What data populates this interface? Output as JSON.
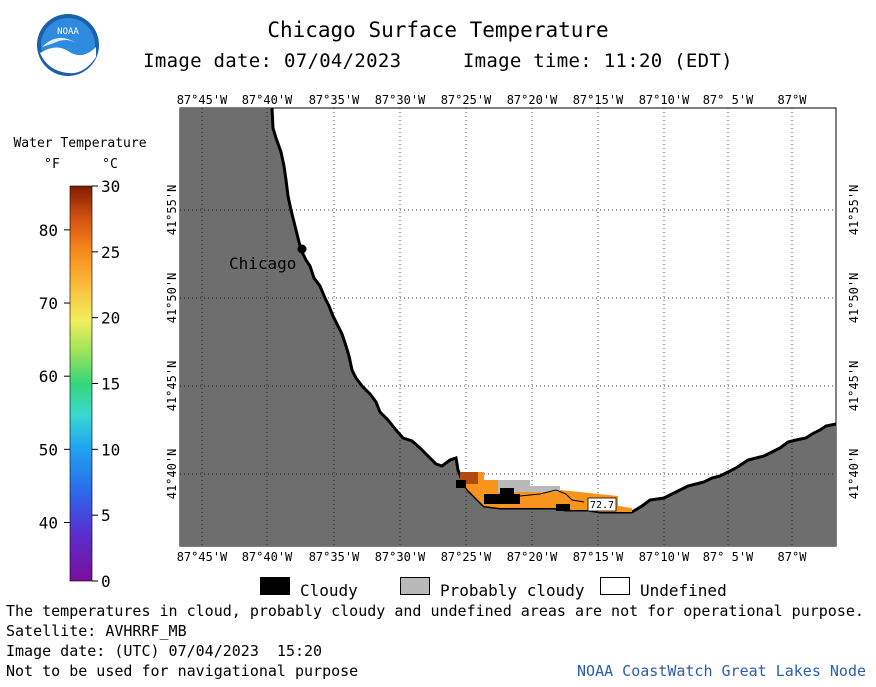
{
  "title": "Chicago Surface Temperature",
  "image_date_label": "Image date: 07/04/2023",
  "image_time_label": "Image time: 11:20 (EDT)",
  "colors": {
    "land": "#6e6e6e",
    "cloudy": "#000000",
    "probably_cloudy": "#b9b9b9",
    "undefined": "#ffffff",
    "warm_water": "#f7941d",
    "hot_water": "#b04a10",
    "credit": "#2a5db0"
  },
  "color_scale": {
    "title": "Water Temperature",
    "unit_f": "°F",
    "unit_c": "°C",
    "f_ticks": [
      "80",
      "70",
      "60",
      "50",
      "40"
    ],
    "c_ticks": [
      "30",
      "25",
      "20",
      "15",
      "10",
      "5",
      "0"
    ],
    "c_range": [
      0,
      30
    ],
    "f_range": [
      32,
      86
    ]
  },
  "map": {
    "top_lon_labels": [
      "87°45'W",
      "87°40'W",
      "87°35'W",
      "87°30'W",
      "87°25'W",
      "87°20'W",
      "87°15'W",
      "87°10'W",
      "87° 5'W",
      "87°W"
    ],
    "bottom_lon_labels": [
      "87°45'W",
      "87°40'W",
      "87°35'W",
      "87°30'W",
      "87°25'W",
      "87°20'W",
      "87°15'W",
      "87°10'W",
      "87° 5'W",
      "87°W"
    ],
    "left_lat_labels": [
      "41°55'N",
      "41°50'N",
      "41°45'N",
      "41°40'N"
    ],
    "right_lat_labels": [
      "41°55'N",
      "41°50'N",
      "41°45'N",
      "41°40'N"
    ],
    "city_label": "Chicago",
    "point_label": "72.7"
  },
  "legend": {
    "cloudy": "Cloudy",
    "probably_cloudy": "Probably cloudy",
    "undefined": "Undefined"
  },
  "footer": {
    "disclaimer": "The temperatures in cloud, probably cloudy and undefined areas are not for operational purpose.",
    "satellite": "Satellite: AVHRRF_MB",
    "utc_date": "Image date: (UTC) 07/04/2023  15:20",
    "nav_warning": "Not to be used for navigational purpose",
    "credit": "NOAA CoastWatch Great Lakes Node"
  },
  "logo_text": "NOAA"
}
